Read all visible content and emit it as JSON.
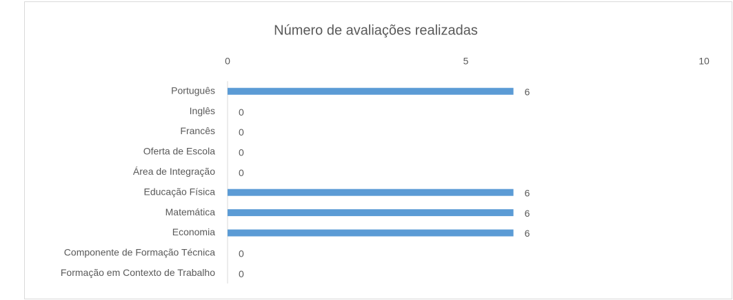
{
  "chart_data": {
    "type": "bar",
    "orientation": "horizontal",
    "title": "Número de avaliações realizadas",
    "categories": [
      "Português",
      "Inglês",
      "Francês",
      "Oferta de Escola",
      "Área de Integração",
      "Educação Física",
      "Matemática",
      "Economia",
      "Componente de Formação Técnica",
      "Formação em Contexto de Trabalho"
    ],
    "values": [
      6,
      0,
      0,
      0,
      0,
      6,
      6,
      6,
      0,
      0
    ],
    "color": "#5b9bd5",
    "xlim": [
      0,
      10
    ],
    "xticks": [
      0,
      5,
      10
    ],
    "grid": false
  }
}
